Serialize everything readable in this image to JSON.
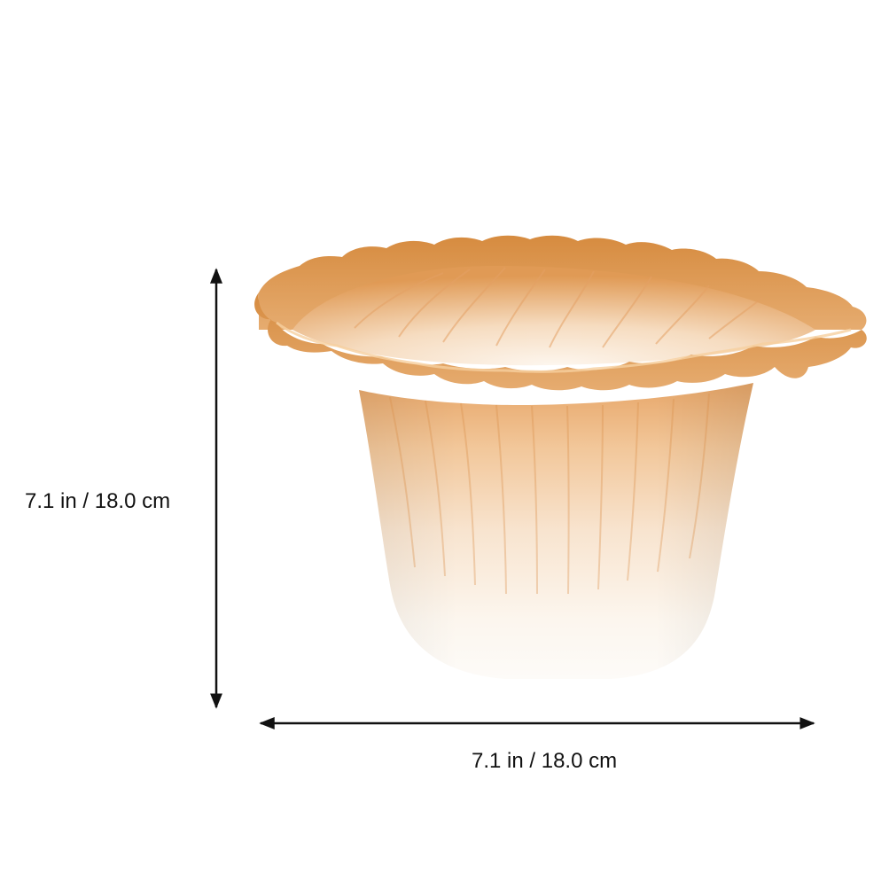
{
  "product_image": {
    "subject": "frosted-glass-flower-lamp-shade",
    "colors": {
      "rim_amber": "#d9954a",
      "rim_dark": "#c47a30",
      "mid_peach": "#f3d3ae",
      "base_white": "#fbf9f5",
      "arrow": "#111111"
    }
  },
  "dimensions": {
    "height_label": "7.1 in / 18.0 cm",
    "width_label": "7.1 in / 18.0 cm"
  }
}
